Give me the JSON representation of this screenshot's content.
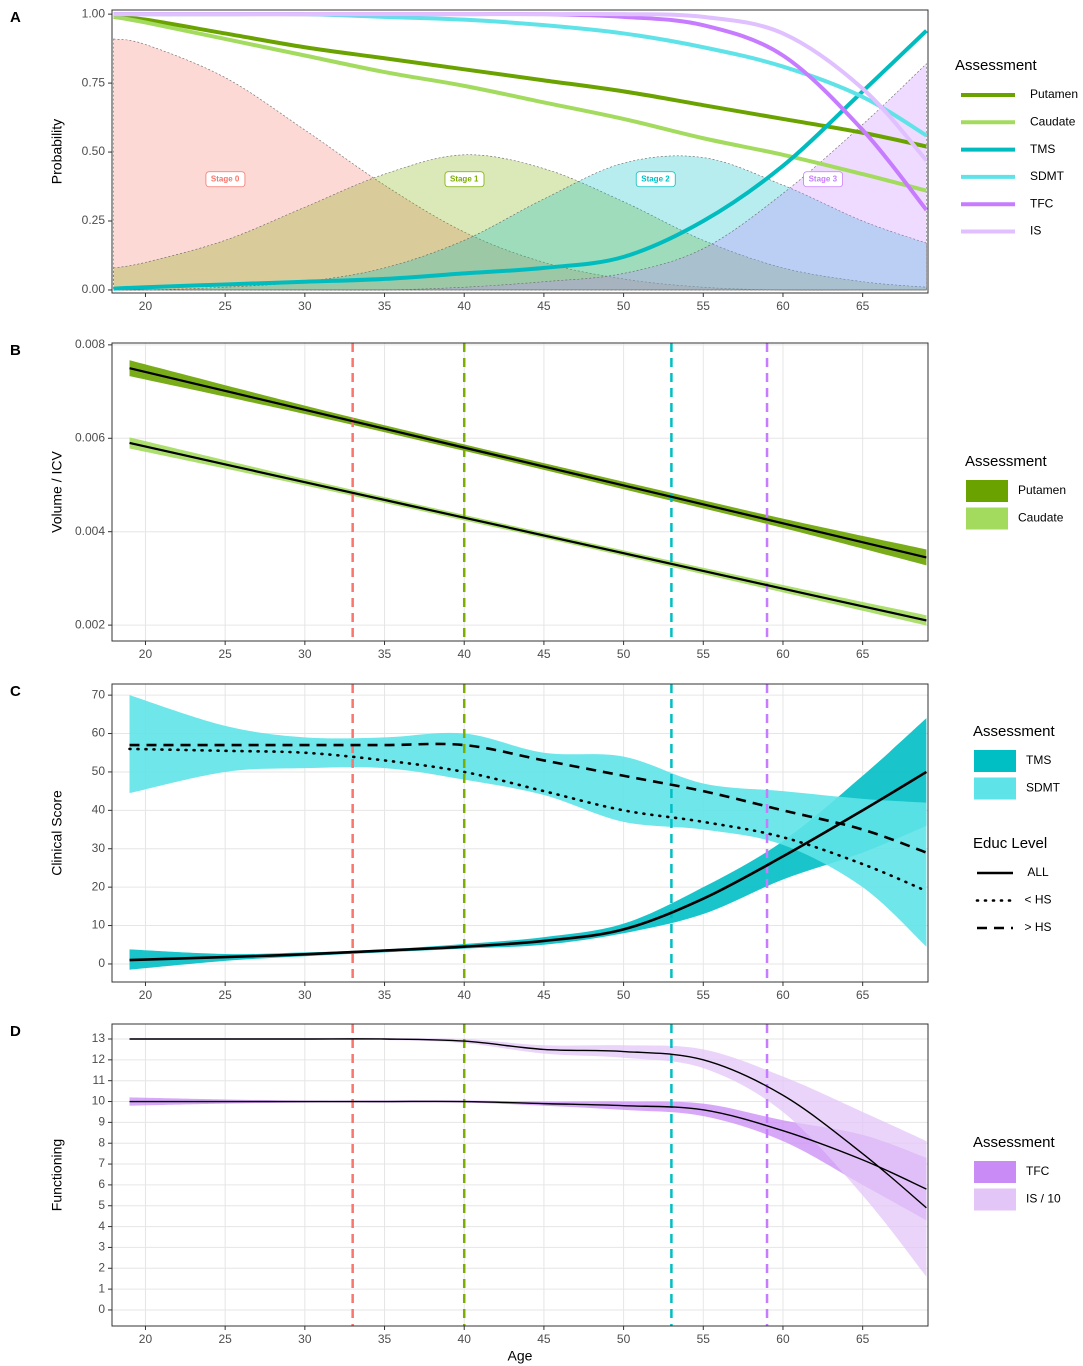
{
  "chart_data": [
    {
      "tag": "A",
      "type": "line",
      "ylabel": "Probability",
      "xlim": [
        17.9,
        69.1
      ],
      "ylim": [
        -0.011,
        1.015
      ],
      "xticks": [
        20,
        25,
        30,
        35,
        40,
        45,
        50,
        55,
        60,
        65
      ],
      "yticks": [
        {
          "value": 0,
          "label": "0.00"
        },
        0.25,
        {
          "value": 0.5,
          "label": "0.50"
        },
        0.75,
        {
          "value": 1,
          "label": "1.00"
        }
      ],
      "grid": false,
      "legend_title": "Assessment",
      "x": [
        18,
        20,
        25,
        30,
        35,
        40,
        45,
        50,
        55,
        60,
        65,
        69
      ],
      "areas": [
        {
          "color": "#f8766d",
          "values": [
            0.91,
            0.89,
            0.77,
            0.58,
            0.38,
            0.21,
            0.1,
            0.04,
            0.01,
            0,
            0,
            0
          ]
        },
        {
          "color": "#7cae00",
          "values": [
            0.08,
            0.1,
            0.18,
            0.3,
            0.42,
            0.49,
            0.44,
            0.32,
            0.18,
            0.08,
            0.03,
            0.01
          ]
        },
        {
          "color": "#00bfc4",
          "values": [
            0,
            0,
            0.01,
            0.03,
            0.08,
            0.18,
            0.33,
            0.46,
            0.48,
            0.38,
            0.25,
            0.17
          ]
        },
        {
          "color": "#c77cff",
          "values": [
            0,
            0,
            0,
            0,
            0,
            0.01,
            0.03,
            0.06,
            0.15,
            0.35,
            0.6,
            0.82
          ]
        }
      ],
      "series": [
        {
          "name": "Putamen",
          "color": "#6aa300",
          "values": [
            0.99,
            0.98,
            0.93,
            0.88,
            0.84,
            0.8,
            0.76,
            0.72,
            0.67,
            0.62,
            0.57,
            0.52
          ]
        },
        {
          "name": "Caudate",
          "color": "#a3db5e",
          "values": [
            0.99,
            0.97,
            0.91,
            0.85,
            0.79,
            0.74,
            0.68,
            0.62,
            0.55,
            0.49,
            0.42,
            0.36
          ]
        },
        {
          "name": "TMS",
          "color": "#00bcbf",
          "values": [
            0.005,
            0.01,
            0.02,
            0.03,
            0.04,
            0.06,
            0.08,
            0.12,
            0.25,
            0.45,
            0.72,
            0.94
          ]
        },
        {
          "name": "SDMT",
          "color": "#5fe3e8",
          "values": [
            1,
            1,
            1,
            1,
            0.99,
            0.98,
            0.96,
            0.93,
            0.88,
            0.81,
            0.7,
            0.56
          ]
        },
        {
          "name": "TFC",
          "color": "#c77cff",
          "values": [
            1,
            1,
            1,
            1,
            1,
            1,
            1,
            0.99,
            0.96,
            0.85,
            0.58,
            0.29
          ]
        },
        {
          "name": "IS",
          "color": "#e0c0ff",
          "values": [
            1,
            1,
            1,
            1,
            1,
            1,
            1,
            1,
            0.99,
            0.93,
            0.73,
            0.47
          ]
        }
      ],
      "annotations": [
        {
          "text": "Stage 0",
          "x": 25,
          "y": 0.4,
          "color": "#f8766d"
        },
        {
          "text": "Stage 1",
          "x": 40,
          "y": 0.4,
          "color": "#7cae00"
        },
        {
          "text": "Stage 2",
          "x": 52,
          "y": 0.4,
          "color": "#00bfc4"
        },
        {
          "text": "Stage 3",
          "x": 62.5,
          "y": 0.4,
          "color": "#c77cff"
        }
      ]
    },
    {
      "tag": "B",
      "type": "line",
      "ylabel": "Volume / ICV",
      "xlim": [
        17.9,
        69.1
      ],
      "ylim": [
        0.00166,
        0.00804
      ],
      "xticks": [
        20,
        25,
        30,
        35,
        40,
        45,
        50,
        55,
        60,
        65
      ],
      "yticks": [
        0.002,
        0.004,
        0.006,
        0.008
      ],
      "grid": true,
      "legend_title": "Assessment",
      "line_color": "#000000",
      "x": [
        19,
        30,
        40,
        50,
        60,
        69
      ],
      "series": [
        {
          "name": "Putamen",
          "color": "#6aa300",
          "values": [
            0.0075,
            0.00661,
            0.0058,
            0.00499,
            0.00418,
            0.00345
          ],
          "lower": [
            0.00733,
            0.00652,
            0.00573,
            0.00491,
            0.00408,
            0.00328
          ],
          "upper": [
            0.00767,
            0.0067,
            0.00587,
            0.00507,
            0.00428,
            0.00362
          ]
        },
        {
          "name": "Caudate",
          "color": "#a3db5e",
          "values": [
            0.0059,
            0.00506,
            0.0043,
            0.00354,
            0.00278,
            0.0021
          ],
          "lower": [
            0.00578,
            0.00499,
            0.00424,
            0.00348,
            0.0027,
            0.00199
          ],
          "upper": [
            0.00602,
            0.00513,
            0.00436,
            0.0036,
            0.00286,
            0.00221
          ]
        }
      ],
      "vlines": [
        {
          "x": 33,
          "color": "#f8766d"
        },
        {
          "x": 40,
          "color": "#7cae00"
        },
        {
          "x": 53,
          "color": "#00bfc4"
        },
        {
          "x": 59,
          "color": "#c77cff"
        }
      ]
    },
    {
      "tag": "C",
      "type": "line",
      "ylabel": "Clinical Score",
      "xlim": [
        17.9,
        69.1
      ],
      "ylim": [
        -4.7,
        72.9
      ],
      "xticks": [
        20,
        25,
        30,
        35,
        40,
        45,
        50,
        55,
        60,
        65
      ],
      "yticks": [
        0,
        10,
        20,
        30,
        40,
        50,
        60,
        70
      ],
      "grid": true,
      "legend_title": "Assessment",
      "legend2_title": "Educ Level",
      "line_color": "#000000",
      "x": [
        19,
        25,
        30,
        35,
        40,
        45,
        50,
        55,
        60,
        65,
        69
      ],
      "series": [
        {
          "name": "TMS",
          "color": "#00bfc4",
          "lower": [
            -1.5,
            0.8,
            2,
            3,
            4,
            5,
            8,
            13,
            22,
            29,
            36
          ],
          "upper": [
            3.8,
            2.6,
            3,
            3.8,
            5.2,
            7,
            10.5,
            20,
            32,
            49,
            64
          ]
        },
        {
          "name": "SDMT",
          "color": "#5ee3e8",
          "lower": [
            44.5,
            50,
            51,
            51,
            48,
            44,
            37,
            35,
            31,
            20,
            4.5
          ],
          "upper": [
            70,
            62,
            59,
            59,
            60,
            55,
            54,
            47,
            45,
            43,
            42
          ]
        }
      ],
      "lines": [
        {
          "name": "ALL",
          "dash": "solid",
          "values": [
            1,
            1.8,
            2.5,
            3.5,
            4.5,
            6,
            9,
            17,
            28,
            40,
            50
          ]
        },
        {
          "name": "< HS",
          "dash": "dotted",
          "values": [
            56,
            55.5,
            55,
            53,
            50,
            45,
            40,
            37,
            33,
            26,
            19
          ]
        },
        {
          "name": "> HS",
          "dash": "dashed",
          "values": [
            57,
            57,
            57,
            57,
            57,
            53,
            49,
            45,
            40,
            35,
            29
          ]
        }
      ],
      "vlines": [
        {
          "x": 33,
          "color": "#f8766d"
        },
        {
          "x": 40,
          "color": "#7cae00"
        },
        {
          "x": 53,
          "color": "#00bfc4"
        },
        {
          "x": 59,
          "color": "#c77cff"
        }
      ]
    },
    {
      "tag": "D",
      "type": "line",
      "ylabel": "Functioning",
      "xlabel": "Age",
      "xlim": [
        17.9,
        69.1
      ],
      "ylim": [
        -0.77,
        13.72
      ],
      "xticks": [
        20,
        25,
        30,
        35,
        40,
        45,
        50,
        55,
        60,
        65
      ],
      "yticks": [
        0,
        1,
        2,
        3,
        4,
        5,
        6,
        7,
        8,
        9,
        10,
        11,
        12,
        13
      ],
      "grid": true,
      "legend_title": "Assessment",
      "line_color": "#000000",
      "x": [
        19,
        25,
        30,
        35,
        40,
        45,
        50,
        55,
        60,
        65,
        69
      ],
      "series": [
        {
          "name": "TFC",
          "color": "#c98bf5",
          "values": [
            10,
            10,
            10,
            10,
            10,
            9.9,
            9.8,
            9.6,
            8.6,
            7.2,
            5.8
          ],
          "lower": [
            9.8,
            9.9,
            9.95,
            9.95,
            9.95,
            9.8,
            9.6,
            9.3,
            8.1,
            6,
            4.3
          ],
          "upper": [
            10.2,
            10.1,
            10.05,
            10.05,
            10.05,
            10,
            10,
            9.9,
            9.1,
            8.4,
            7.3
          ]
        },
        {
          "name": "IS / 10",
          "color": "#e3c6f7",
          "values": [
            13,
            13,
            13,
            13,
            12.9,
            12.5,
            12.4,
            12,
            10.3,
            7.5,
            4.9
          ],
          "lower": [
            12.95,
            12.95,
            12.95,
            12.95,
            12.8,
            12.3,
            12.1,
            11.6,
            9.5,
            5.5,
            1.6
          ],
          "upper": [
            13.05,
            13.05,
            13.05,
            13.05,
            13,
            12.7,
            12.7,
            12.5,
            11.2,
            9.5,
            8.1
          ]
        }
      ],
      "vlines": [
        {
          "x": 33,
          "color": "#f8766d"
        },
        {
          "x": 40,
          "color": "#7cae00"
        },
        {
          "x": 53,
          "color": "#00bfc4"
        },
        {
          "x": 59,
          "color": "#c77cff"
        }
      ]
    }
  ]
}
